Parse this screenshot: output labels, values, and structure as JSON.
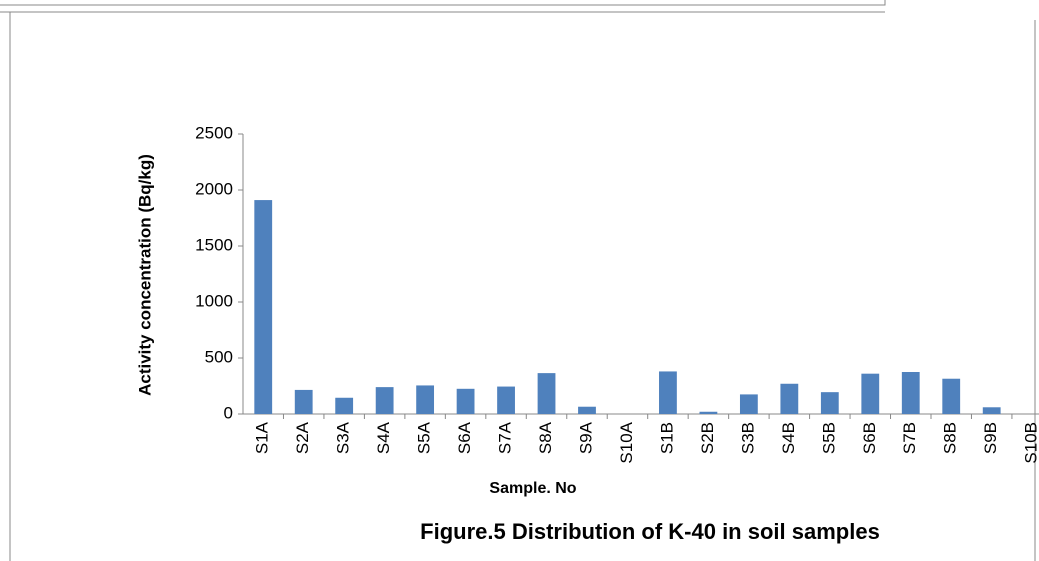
{
  "chart_data": {
    "type": "bar",
    "title": "Figure.5 Distribution of K-40 in soil samples",
    "x_label": "Sample. No",
    "y_label": "Activity concentration (Bq/kg)",
    "categories": [
      "S1A",
      "S2A",
      "S3A",
      "S4A",
      "S5A",
      "S6A",
      "S7A",
      "S8A",
      "S9A",
      "S10A",
      "S1B",
      "S2B",
      "S3B",
      "S4B",
      "S5B",
      "S6B",
      "S7B",
      "S8B",
      "S9B",
      "S10B"
    ],
    "values": [
      1910,
      215,
      145,
      240,
      255,
      225,
      245,
      365,
      65,
      0,
      380,
      20,
      175,
      270,
      195,
      360,
      375,
      315,
      60,
      0
    ],
    "color": "#4f81bd",
    "ylim": [
      0,
      2500
    ],
    "yticks": [
      0,
      500,
      1000,
      1500,
      2000,
      2500
    ],
    "grid": false
  }
}
